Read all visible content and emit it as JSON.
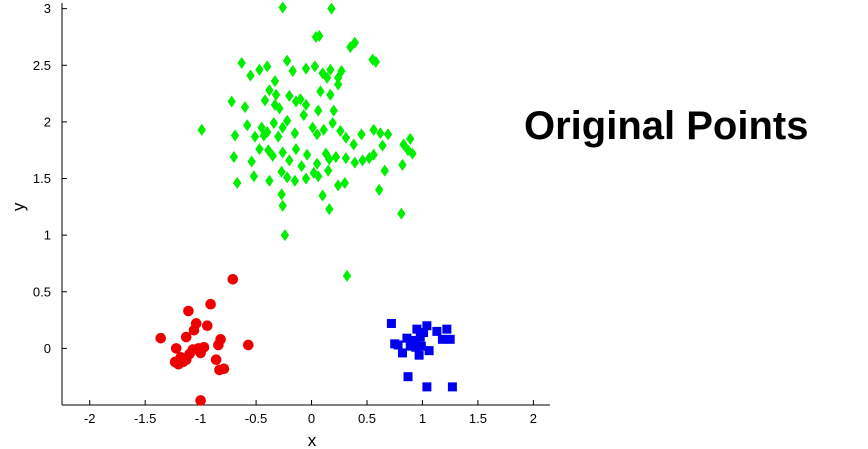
{
  "chart_data": {
    "type": "scatter",
    "title": "Original Points",
    "xlabel": "x",
    "ylabel": "y",
    "xlim": [
      -2.25,
      2.15
    ],
    "ylim": [
      -0.5,
      3.05
    ],
    "xticks": [
      -2,
      -1.5,
      -1,
      -0.5,
      0,
      0.5,
      1,
      1.5,
      2
    ],
    "xtick_labels": [
      "-2",
      "-1.5",
      "-1",
      "-0.5",
      "0",
      "0.5",
      "1",
      "1.5",
      "2"
    ],
    "yticks": [
      0,
      0.5,
      1,
      1.5,
      2,
      2.5,
      3
    ],
    "ytick_labels": [
      "0",
      "0.5",
      "1",
      "1.5",
      "2",
      "2.5",
      "3"
    ],
    "grid": false,
    "legend": "none",
    "series": [
      {
        "marker": "diamond",
        "color": "#00ee00",
        "points": [
          [
            -0.26,
            3.01
          ],
          [
            0.18,
            3.0
          ],
          [
            0.04,
            2.75
          ],
          [
            0.07,
            2.76
          ],
          [
            0.39,
            2.7
          ],
          [
            0.35,
            2.66
          ],
          [
            0.55,
            2.55
          ],
          [
            0.58,
            2.53
          ],
          [
            -0.63,
            2.52
          ],
          [
            -0.47,
            2.46
          ],
          [
            -0.55,
            2.41
          ],
          [
            -0.4,
            2.49
          ],
          [
            -0.33,
            2.36
          ],
          [
            -0.22,
            2.54
          ],
          [
            -0.17,
            2.45
          ],
          [
            0.03,
            2.49
          ],
          [
            -0.05,
            2.47
          ],
          [
            0.1,
            2.43
          ],
          [
            0.17,
            2.46
          ],
          [
            0.27,
            2.45
          ],
          [
            0.24,
            2.39
          ],
          [
            0.14,
            2.39
          ],
          [
            0.24,
            2.33
          ],
          [
            -0.38,
            2.28
          ],
          [
            -0.32,
            2.24
          ],
          [
            -0.42,
            2.19
          ],
          [
            -0.33,
            2.15
          ],
          [
            -0.29,
            2.12
          ],
          [
            -0.2,
            2.23
          ],
          [
            -0.14,
            2.18
          ],
          [
            -0.1,
            2.2
          ],
          [
            -0.05,
            2.15
          ],
          [
            0.08,
            2.27
          ],
          [
            0.17,
            2.24
          ],
          [
            0.2,
            2.1
          ],
          [
            0.06,
            2.1
          ],
          [
            -0.6,
            2.13
          ],
          [
            -0.72,
            2.18
          ],
          [
            -0.69,
            1.88
          ],
          [
            -0.99,
            1.93
          ],
          [
            -0.58,
            1.97
          ],
          [
            -0.51,
            1.87
          ],
          [
            -0.45,
            1.95
          ],
          [
            -0.43,
            1.88
          ],
          [
            -0.4,
            1.91
          ],
          [
            -0.34,
            1.99
          ],
          [
            -0.3,
            1.87
          ],
          [
            -0.26,
            1.95
          ],
          [
            -0.22,
            2.01
          ],
          [
            -0.15,
            1.9
          ],
          [
            -0.07,
            2.06
          ],
          [
            0.01,
            1.95
          ],
          [
            0.05,
            1.89
          ],
          [
            0.11,
            1.93
          ],
          [
            0.19,
            1.99
          ],
          [
            0.26,
            1.92
          ],
          [
            0.31,
            1.86
          ],
          [
            0.38,
            1.8
          ],
          [
            0.45,
            1.89
          ],
          [
            0.56,
            1.93
          ],
          [
            0.62,
            1.9
          ],
          [
            0.69,
            1.89
          ],
          [
            0.83,
            1.8
          ],
          [
            0.89,
            1.85
          ],
          [
            -0.7,
            1.69
          ],
          [
            -0.54,
            1.65
          ],
          [
            -0.47,
            1.76
          ],
          [
            -0.39,
            1.75
          ],
          [
            -0.35,
            1.7
          ],
          [
            -0.26,
            1.73
          ],
          [
            -0.2,
            1.66
          ],
          [
            -0.14,
            1.76
          ],
          [
            -0.09,
            1.61
          ],
          [
            -0.04,
            1.71
          ],
          [
            0.05,
            1.63
          ],
          [
            0.13,
            1.72
          ],
          [
            0.16,
            1.67
          ],
          [
            0.22,
            1.69
          ],
          [
            0.31,
            1.68
          ],
          [
            0.39,
            1.64
          ],
          [
            0.46,
            1.66
          ],
          [
            0.52,
            1.68
          ],
          [
            0.56,
            1.71
          ],
          [
            0.64,
            1.79
          ],
          [
            0.87,
            1.75
          ],
          [
            0.66,
            1.57
          ],
          [
            -0.67,
            1.46
          ],
          [
            -0.52,
            1.52
          ],
          [
            -0.38,
            1.48
          ],
          [
            -0.27,
            1.56
          ],
          [
            -0.22,
            1.51
          ],
          [
            -0.15,
            1.48
          ],
          [
            -0.05,
            1.5
          ],
          [
            0.02,
            1.55
          ],
          [
            0.06,
            1.52
          ],
          [
            0.15,
            1.57
          ],
          [
            0.24,
            1.44
          ],
          [
            0.3,
            1.46
          ],
          [
            0.61,
            1.4
          ],
          [
            0.82,
            1.62
          ],
          [
            0.91,
            1.72
          ],
          [
            -0.27,
            1.36
          ],
          [
            -0.26,
            1.26
          ],
          [
            0.1,
            1.35
          ],
          [
            0.16,
            1.23
          ],
          [
            0.81,
            1.19
          ],
          [
            -0.24,
            1.0
          ],
          [
            0.32,
            0.64
          ]
        ]
      },
      {
        "marker": "circle",
        "color": "#ee0000",
        "points": [
          [
            -0.71,
            0.61
          ],
          [
            -0.91,
            0.39
          ],
          [
            -1.11,
            0.33
          ],
          [
            -0.94,
            0.2
          ],
          [
            -1.04,
            0.22
          ],
          [
            -1.06,
            0.16
          ],
          [
            -1.13,
            0.1
          ],
          [
            -1.36,
            0.09
          ],
          [
            -0.82,
            0.08
          ],
          [
            -0.84,
            0.03
          ],
          [
            -1.02,
            -0.0
          ],
          [
            -0.97,
            0.01
          ],
          [
            -1.07,
            -0.01
          ],
          [
            -1.22,
            0.0
          ],
          [
            -0.57,
            0.03
          ],
          [
            -1.0,
            -0.04
          ],
          [
            -1.1,
            -0.05
          ],
          [
            -1.18,
            -0.08
          ],
          [
            -1.13,
            -0.1
          ],
          [
            -1.23,
            -0.12
          ],
          [
            -1.16,
            -0.12
          ],
          [
            -0.86,
            -0.1
          ],
          [
            -1.2,
            -0.14
          ],
          [
            -0.79,
            -0.18
          ],
          [
            -0.83,
            -0.19
          ],
          [
            -1.0,
            -0.46
          ]
        ]
      },
      {
        "marker": "square",
        "color": "#0000ee",
        "points": [
          [
            0.72,
            0.22
          ],
          [
            1.04,
            0.2
          ],
          [
            0.95,
            0.17
          ],
          [
            1.01,
            0.14
          ],
          [
            1.13,
            0.15
          ],
          [
            1.22,
            0.17
          ],
          [
            1.18,
            0.08
          ],
          [
            1.25,
            0.08
          ],
          [
            0.86,
            0.09
          ],
          [
            0.93,
            0.07
          ],
          [
            0.98,
            0.1
          ],
          [
            0.75,
            0.04
          ],
          [
            0.78,
            0.03
          ],
          [
            0.89,
            0.02
          ],
          [
            0.94,
            0.01
          ],
          [
            0.99,
            0.02
          ],
          [
            1.06,
            -0.02
          ],
          [
            0.82,
            -0.04
          ],
          [
            0.97,
            -0.06
          ],
          [
            0.87,
            -0.25
          ],
          [
            1.04,
            -0.34
          ],
          [
            1.27,
            -0.34
          ]
        ]
      }
    ]
  }
}
